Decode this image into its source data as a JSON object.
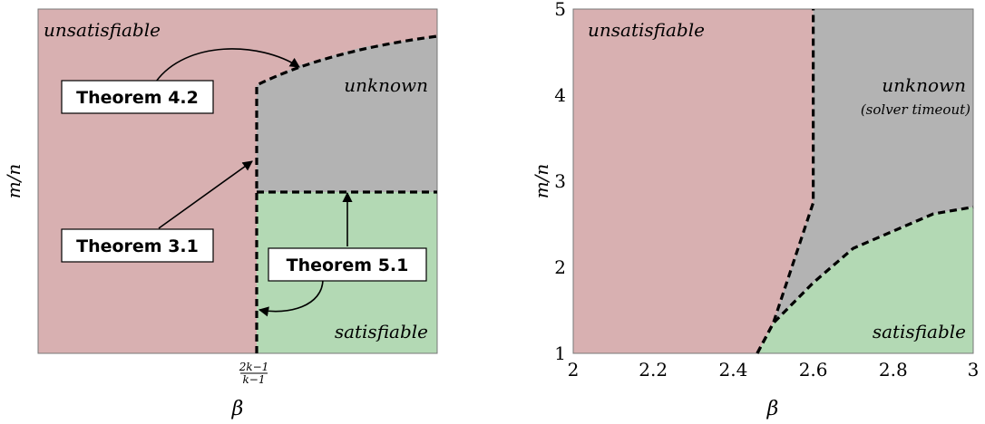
{
  "colors": {
    "unsatisfiable": "#d8b0b1",
    "unknown": "#b3b3b3",
    "satisfiable": "#b3d9b4",
    "boundary": "#000000"
  },
  "left": {
    "region_labels": {
      "unsatisfiable": "unsatisfiable",
      "unknown": "unknown",
      "satisfiable": "satisfiable"
    },
    "theorems": {
      "t42": "Theorem 4.2",
      "t31": "Theorem 3.1",
      "t51": "Theorem 5.1"
    },
    "xtick": {
      "numerator": "2k−1",
      "denominator": "k−1"
    },
    "xlabel": "β",
    "ylabel": "m/n"
  },
  "right": {
    "region_labels": {
      "unsatisfiable": "unsatisfiable",
      "unknown": "unknown",
      "unknown_note": "(solver timeout)",
      "satisfiable": "satisfiable"
    },
    "xlabel": "β",
    "ylabel": "m/n"
  },
  "chart_data": {
    "type": "area",
    "xlabel": "β",
    "ylabel": "m/n",
    "xlim": [
      2,
      3
    ],
    "ylim": [
      1,
      5
    ],
    "xticks": [
      "2",
      "2.2",
      "2.4",
      "2.6",
      "2.8",
      "3"
    ],
    "yticks": [
      "1",
      "2",
      "3",
      "4",
      "5"
    ],
    "boundaries": {
      "unsat_boundary": [
        [
          2.46,
          1.0
        ],
        [
          2.5,
          1.35
        ],
        [
          2.6,
          2.75
        ],
        [
          2.6,
          5.0
        ]
      ],
      "sat_boundary": [
        [
          2.46,
          1.0
        ],
        [
          2.5,
          1.35
        ],
        [
          2.6,
          1.82
        ],
        [
          2.7,
          2.22
        ],
        [
          2.8,
          2.42
        ],
        [
          2.9,
          2.62
        ],
        [
          3.0,
          2.7
        ]
      ]
    },
    "regions": [
      "unsatisfiable",
      "unknown",
      "satisfiable"
    ]
  }
}
